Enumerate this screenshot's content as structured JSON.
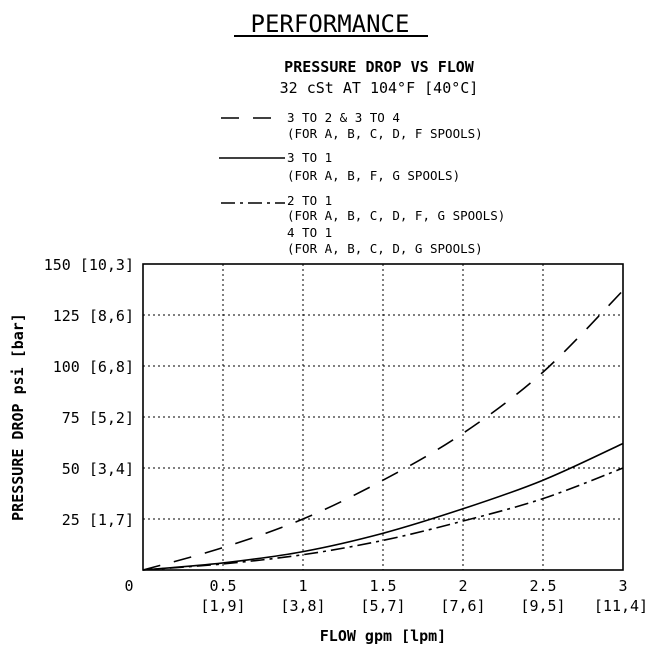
{
  "header": {
    "title": "PERFORMANCE",
    "subtitle": "PRESSURE DROP VS FLOW",
    "condition": "32 cSt AT 104°F [40°C]"
  },
  "colors": {
    "ink": "#000000",
    "background": "#ffffff"
  },
  "chart_data": {
    "type": "line",
    "xlabel": "FLOW gpm [lpm]",
    "ylabel": "PRESSURE DROP psi [bar]",
    "xlim": [
      0,
      3
    ],
    "ylim": [
      0,
      150
    ],
    "grid": true,
    "grid_style": "dotted",
    "legend_placement": "top-left",
    "x_ticks": [
      {
        "value": 0,
        "label": "0",
        "sub": ""
      },
      {
        "value": 0.5,
        "label": "0.5",
        "sub": "[1,9]"
      },
      {
        "value": 1,
        "label": "1",
        "sub": "[3,8]"
      },
      {
        "value": 1.5,
        "label": "1.5",
        "sub": "[5,7]"
      },
      {
        "value": 2,
        "label": "2",
        "sub": "[7,6]"
      },
      {
        "value": 2.5,
        "label": "2.5",
        "sub": "[9,5]"
      },
      {
        "value": 3,
        "label": "3",
        "sub": "[11,4]"
      }
    ],
    "y_ticks": [
      {
        "value": 25,
        "label": "25 [1,7]"
      },
      {
        "value": 50,
        "label": "50 [3,4]"
      },
      {
        "value": 75,
        "label": "75 [5,2]"
      },
      {
        "value": 100,
        "label": "100 [6,8]"
      },
      {
        "value": 125,
        "label": "125 [8,6]"
      },
      {
        "value": 150,
        "label": "150 [10,3]"
      }
    ],
    "series": [
      {
        "name": "3 TO 2 & 3 TO 4",
        "note": "(FOR A, B, C, D, F SPOOLS)",
        "style": "dashed",
        "x": [
          0,
          0.5,
          1,
          1.5,
          2,
          2.5,
          3
        ],
        "y": [
          0,
          11,
          25,
          44,
          67,
          97,
          137
        ]
      },
      {
        "name": "3 TO 1",
        "note": "(FOR A, B, F, G SPOOLS)",
        "style": "solid",
        "x": [
          0,
          0.5,
          1,
          1.5,
          2,
          2.5,
          3
        ],
        "y": [
          0,
          3.5,
          9,
          18,
          30,
          44,
          62
        ]
      },
      {
        "name": "2 TO 1",
        "note": "(FOR A, B, C, D, F, G SPOOLS)",
        "name2": "4 TO 1",
        "note2": "(FOR A, B, C, D, G SPOOLS)",
        "style": "dashdot",
        "x": [
          0,
          0.5,
          1,
          1.5,
          2,
          2.5,
          3
        ],
        "y": [
          0,
          3,
          7.5,
          14.5,
          24,
          35,
          50
        ]
      }
    ]
  }
}
